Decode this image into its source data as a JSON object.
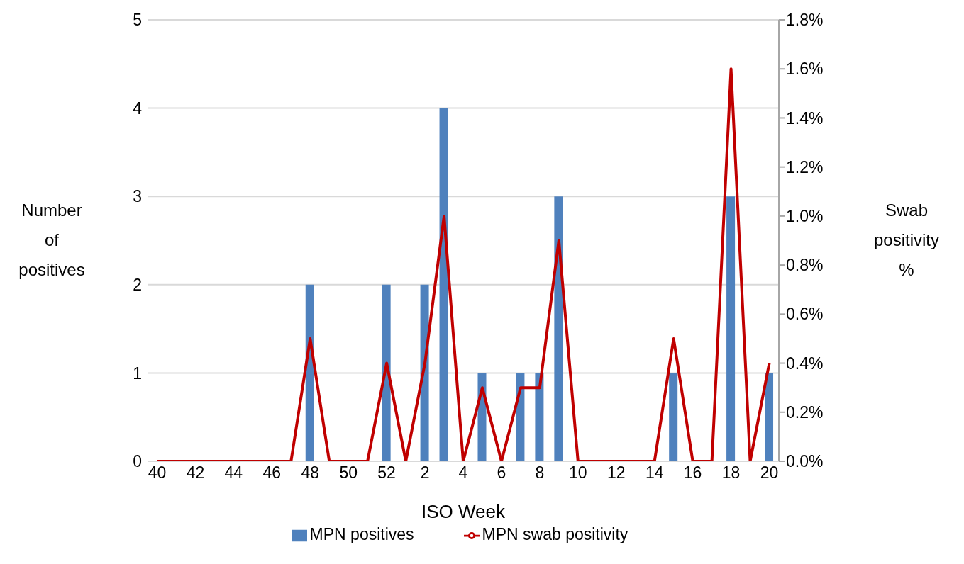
{
  "chart_data": {
    "type": "bar",
    "xlabel": "ISO Week",
    "ylabel": "Number of positives",
    "y2label": "Swab positivity %",
    "categories": [
      "40",
      null,
      "42",
      null,
      "44",
      null,
      "46",
      null,
      "48",
      null,
      "50",
      null,
      "52",
      null,
      "2",
      null,
      "4",
      null,
      "6",
      null,
      "8",
      null,
      "10",
      null,
      "12",
      null,
      "14",
      null,
      "16",
      null,
      "18",
      null,
      "20"
    ],
    "series": [
      {
        "name": "MPN positives",
        "color": "#4f81bd",
        "values": [
          0,
          0,
          0,
          0,
          0,
          0,
          0,
          0,
          2,
          0,
          0,
          0,
          2,
          0,
          2,
          4,
          0,
          1,
          0,
          1,
          1,
          3,
          0,
          0,
          0,
          0,
          0,
          1,
          0,
          0,
          3,
          0,
          1
        ]
      },
      {
        "name": "MPN swab positivity",
        "type": "line",
        "axis": "y2",
        "color": "#c00000",
        "marker": "none",
        "values": [
          0,
          0,
          0,
          0,
          0,
          0,
          0,
          0,
          0.5,
          0,
          0,
          0,
          0.4,
          0,
          0.4,
          1.0,
          0,
          0.3,
          0,
          0.3,
          0.3,
          0.9,
          0,
          0,
          0,
          0,
          0,
          0.5,
          0,
          0,
          1.6,
          0,
          0.4
        ]
      }
    ],
    "ylim": [
      0,
      5
    ],
    "yticks": [
      0,
      1,
      2,
      3,
      4,
      5
    ],
    "y2lim": [
      0,
      1.8
    ],
    "y2ticks": [
      {
        "value": 0,
        "label": "0.0%"
      },
      {
        "value": 0.2,
        "label": "0.2%"
      },
      {
        "value": 0.4,
        "label": "0.4%"
      },
      {
        "value": 0.6,
        "label": "0.6%"
      },
      {
        "value": 0.8,
        "label": "0.8%"
      },
      {
        "value": 1.0,
        "label": "1.0%"
      },
      {
        "value": 1.2,
        "label": "1.2%"
      },
      {
        "value": 1.4,
        "label": "1.4%"
      },
      {
        "value": 1.6,
        "label": "1.6%"
      },
      {
        "value": 1.8,
        "label": "1.8%"
      }
    ],
    "grid": "y",
    "legend": "bottom"
  }
}
